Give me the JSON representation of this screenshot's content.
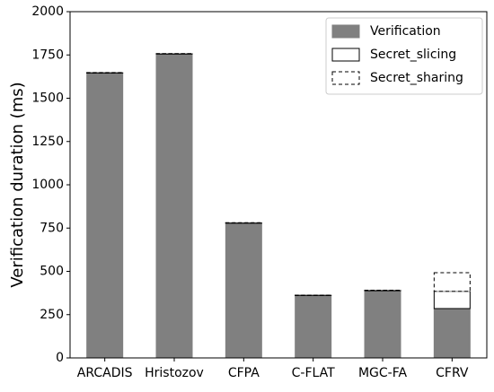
{
  "chart_data": {
    "type": "stacked_bar",
    "ylabel": "Verification duration (ms)",
    "categories": [
      "ARCADIS",
      "Hristozov",
      "CFPA",
      "C-FLAT",
      "MGC-FA",
      "CFRV"
    ],
    "series": [
      {
        "name": "Verification",
        "color": "#808080",
        "edgecolor": "#808080",
        "linestyle": "solid",
        "values": [
          1645,
          1755,
          778,
          360,
          388,
          285
        ]
      },
      {
        "name": "Secret_slicing",
        "color": "#ffffff",
        "edgecolor": "#000000",
        "linestyle": "solid",
        "values": [
          2,
          2,
          2,
          2,
          2,
          100
        ]
      },
      {
        "name": "Secret_sharing",
        "color": "#ffffff",
        "edgecolor": "#000000",
        "linestyle": "dashed",
        "values": [
          1,
          1,
          1,
          1,
          1,
          107
        ]
      }
    ],
    "ylim": [
      0,
      2000
    ],
    "yticks": [
      0,
      250,
      500,
      750,
      1000,
      1250,
      1500,
      1750,
      2000
    ],
    "legend": "upper right"
  }
}
